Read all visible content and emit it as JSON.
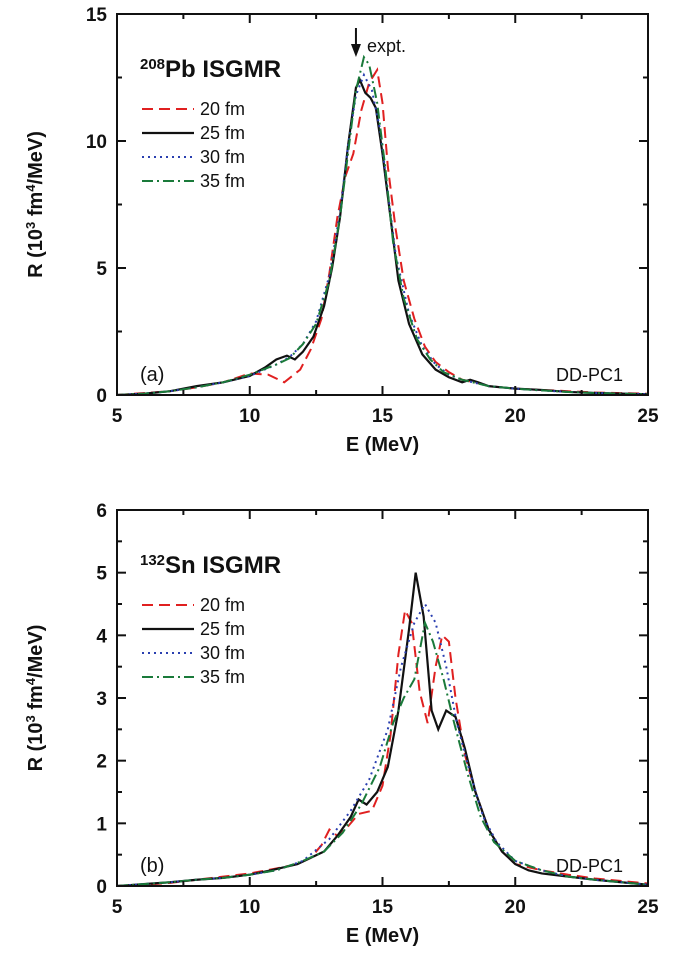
{
  "chart_data": [
    {
      "type": "line",
      "panel": "(a)",
      "title_sup": "208",
      "title": "Pb ISGMR",
      "xlabel": "E (MeV)",
      "ylabel_pre": "R (10",
      "ylabel_sup1": "3",
      "ylabel_mid": " fm",
      "ylabel_sup2": "4",
      "ylabel_post": "/MeV)",
      "xlim": [
        5,
        25
      ],
      "ylim": [
        0,
        15
      ],
      "xticks": [
        5,
        10,
        15,
        20,
        25
      ],
      "yticks": [
        0,
        5,
        10,
        15
      ],
      "model_label": "DD-PC1",
      "annotation": {
        "text": "expt.",
        "x": 14.0
      },
      "legend_position": "top-left",
      "series": [
        {
          "name": "20 fm",
          "color": "#e02020",
          "dash": "dashed",
          "points": [
            [
              5,
              0.0
            ],
            [
              7,
              0.15
            ],
            [
              8,
              0.3
            ],
            [
              9,
              0.5
            ],
            [
              10,
              0.85
            ],
            [
              10.7,
              0.8
            ],
            [
              11.3,
              0.5
            ],
            [
              11.9,
              1.0
            ],
            [
              12.3,
              1.8
            ],
            [
              12.7,
              3.0
            ],
            [
              13,
              4.8
            ],
            [
              13.3,
              7.0
            ],
            [
              13.6,
              8.6
            ],
            [
              13.9,
              9.5
            ],
            [
              14.2,
              11.2
            ],
            [
              14.5,
              12.3
            ],
            [
              14.8,
              12.8
            ],
            [
              15.0,
              11.5
            ],
            [
              15.2,
              9.0
            ],
            [
              15.5,
              6.5
            ],
            [
              15.8,
              4.5
            ],
            [
              16.2,
              3.0
            ],
            [
              16.6,
              1.9
            ],
            [
              17,
              1.3
            ],
            [
              17.5,
              0.9
            ],
            [
              18,
              0.6
            ],
            [
              18.5,
              0.5
            ],
            [
              19,
              0.35
            ],
            [
              20,
              0.25
            ],
            [
              21,
              0.2
            ],
            [
              22,
              0.15
            ],
            [
              23,
              0.1
            ],
            [
              25,
              0.05
            ]
          ]
        },
        {
          "name": "25 fm",
          "color": "#111111",
          "dash": "solid",
          "points": [
            [
              5,
              0.0
            ],
            [
              6,
              0.05
            ],
            [
              7,
              0.15
            ],
            [
              8,
              0.35
            ],
            [
              9,
              0.5
            ],
            [
              10,
              0.75
            ],
            [
              10.6,
              1.1
            ],
            [
              11.0,
              1.4
            ],
            [
              11.4,
              1.55
            ],
            [
              11.7,
              1.4
            ],
            [
              12.0,
              1.7
            ],
            [
              12.4,
              2.3
            ],
            [
              12.8,
              3.5
            ],
            [
              13.1,
              5.0
            ],
            [
              13.4,
              7.0
            ],
            [
              13.7,
              9.8
            ],
            [
              14.0,
              12.1
            ],
            [
              14.15,
              12.4
            ],
            [
              14.35,
              11.9
            ],
            [
              14.55,
              11.7
            ],
            [
              14.75,
              11.3
            ],
            [
              15.0,
              9.5
            ],
            [
              15.3,
              7.0
            ],
            [
              15.6,
              4.5
            ],
            [
              16.0,
              2.8
            ],
            [
              16.5,
              1.6
            ],
            [
              17.0,
              1.0
            ],
            [
              17.5,
              0.7
            ],
            [
              18.0,
              0.5
            ],
            [
              18.3,
              0.6
            ],
            [
              18.6,
              0.5
            ],
            [
              19,
              0.35
            ],
            [
              20,
              0.25
            ],
            [
              21,
              0.2
            ],
            [
              22,
              0.12
            ],
            [
              23,
              0.08
            ],
            [
              25,
              0.03
            ]
          ]
        },
        {
          "name": "30 fm",
          "color": "#2a3fb0",
          "dash": "dotted",
          "points": [
            [
              5,
              0.0
            ],
            [
              6,
              0.05
            ],
            [
              7,
              0.15
            ],
            [
              8,
              0.3
            ],
            [
              9,
              0.5
            ],
            [
              10,
              0.75
            ],
            [
              11,
              1.2
            ],
            [
              11.5,
              1.5
            ],
            [
              12,
              2.0
            ],
            [
              12.5,
              2.9
            ],
            [
              13,
              4.7
            ],
            [
              13.4,
              7.2
            ],
            [
              13.7,
              9.8
            ],
            [
              14.0,
              11.8
            ],
            [
              14.3,
              12.6
            ],
            [
              14.6,
              12.0
            ],
            [
              14.9,
              10.5
            ],
            [
              15.2,
              8.0
            ],
            [
              15.5,
              5.5
            ],
            [
              16,
              3.2
            ],
            [
              16.5,
              1.9
            ],
            [
              17,
              1.2
            ],
            [
              17.5,
              0.8
            ],
            [
              18,
              0.6
            ],
            [
              19,
              0.35
            ],
            [
              20,
              0.25
            ],
            [
              21,
              0.18
            ],
            [
              22,
              0.12
            ],
            [
              23,
              0.08
            ],
            [
              25,
              0.03
            ]
          ]
        },
        {
          "name": "35 fm",
          "color": "#1a7a3a",
          "dash": "dashdot",
          "points": [
            [
              5,
              0.0
            ],
            [
              6,
              0.05
            ],
            [
              7,
              0.15
            ],
            [
              8,
              0.3
            ],
            [
              9,
              0.5
            ],
            [
              10,
              0.8
            ],
            [
              11,
              1.2
            ],
            [
              11.5,
              1.45
            ],
            [
              12,
              2.0
            ],
            [
              12.5,
              2.8
            ],
            [
              13,
              4.5
            ],
            [
              13.4,
              7.0
            ],
            [
              13.7,
              9.5
            ],
            [
              14.0,
              12.0
            ],
            [
              14.3,
              13.3
            ],
            [
              14.5,
              13.0
            ],
            [
              14.8,
              11.5
            ],
            [
              15.1,
              9.0
            ],
            [
              15.4,
              6.0
            ],
            [
              15.8,
              3.8
            ],
            [
              16.3,
              2.2
            ],
            [
              16.8,
              1.4
            ],
            [
              17.3,
              0.9
            ],
            [
              18,
              0.6
            ],
            [
              19,
              0.35
            ],
            [
              20,
              0.25
            ],
            [
              21,
              0.18
            ],
            [
              22,
              0.12
            ],
            [
              23,
              0.08
            ],
            [
              25,
              0.03
            ]
          ]
        }
      ]
    },
    {
      "type": "line",
      "panel": "(b)",
      "title_sup": "132",
      "title": "Sn ISGMR",
      "xlabel": "E (MeV)",
      "ylabel_pre": "R (10",
      "ylabel_sup1": "3",
      "ylabel_mid": " fm",
      "ylabel_sup2": "4",
      "ylabel_post": "/MeV)",
      "xlim": [
        5,
        25
      ],
      "ylim": [
        0,
        6
      ],
      "xticks": [
        5,
        10,
        15,
        20,
        25
      ],
      "yticks": [
        0,
        1,
        2,
        3,
        4,
        5,
        6
      ],
      "model_label": "DD-PC1",
      "legend_position": "top-left",
      "series": [
        {
          "name": "20 fm",
          "color": "#e02020",
          "dash": "dashed",
          "points": [
            [
              5,
              0.0
            ],
            [
              6,
              0.02
            ],
            [
              7,
              0.05
            ],
            [
              8,
              0.1
            ],
            [
              9,
              0.15
            ],
            [
              10,
              0.2
            ],
            [
              11,
              0.28
            ],
            [
              11.8,
              0.35
            ],
            [
              12.3,
              0.45
            ],
            [
              12.7,
              0.65
            ],
            [
              13.0,
              0.9
            ],
            [
              13.3,
              0.8
            ],
            [
              13.7,
              0.95
            ],
            [
              14.1,
              1.15
            ],
            [
              14.6,
              1.2
            ],
            [
              15.0,
              1.6
            ],
            [
              15.3,
              2.4
            ],
            [
              15.6,
              3.7
            ],
            [
              15.85,
              4.4
            ],
            [
              16.1,
              4.2
            ],
            [
              16.4,
              3.1
            ],
            [
              16.7,
              2.6
            ],
            [
              17.0,
              3.5
            ],
            [
              17.25,
              4.0
            ],
            [
              17.5,
              3.9
            ],
            [
              17.75,
              3.0
            ],
            [
              18.1,
              2.1
            ],
            [
              18.5,
              1.5
            ],
            [
              19,
              0.9
            ],
            [
              19.5,
              0.55
            ],
            [
              20,
              0.35
            ],
            [
              21,
              0.25
            ],
            [
              22,
              0.18
            ],
            [
              23,
              0.12
            ],
            [
              24,
              0.08
            ],
            [
              25,
              0.04
            ]
          ]
        },
        {
          "name": "25 fm",
          "color": "#111111",
          "dash": "solid",
          "points": [
            [
              5,
              0.0
            ],
            [
              6,
              0.03
            ],
            [
              7,
              0.06
            ],
            [
              8,
              0.1
            ],
            [
              9,
              0.13
            ],
            [
              10,
              0.18
            ],
            [
              10.8,
              0.25
            ],
            [
              11.3,
              0.3
            ],
            [
              11.8,
              0.35
            ],
            [
              12.3,
              0.45
            ],
            [
              12.8,
              0.55
            ],
            [
              13.3,
              0.8
            ],
            [
              13.8,
              1.1
            ],
            [
              14.1,
              1.38
            ],
            [
              14.4,
              1.3
            ],
            [
              14.8,
              1.5
            ],
            [
              15.2,
              1.9
            ],
            [
              15.6,
              2.8
            ],
            [
              16.0,
              4.1
            ],
            [
              16.25,
              5.0
            ],
            [
              16.55,
              4.3
            ],
            [
              16.85,
              2.8
            ],
            [
              17.1,
              2.5
            ],
            [
              17.4,
              2.8
            ],
            [
              17.75,
              2.7
            ],
            [
              18.1,
              2.2
            ],
            [
              18.5,
              1.5
            ],
            [
              19,
              0.9
            ],
            [
              19.5,
              0.55
            ],
            [
              20,
              0.35
            ],
            [
              20.5,
              0.25
            ],
            [
              21,
              0.2
            ],
            [
              22,
              0.15
            ],
            [
              23,
              0.1
            ],
            [
              24,
              0.06
            ],
            [
              25,
              0.02
            ]
          ]
        },
        {
          "name": "30 fm",
          "color": "#2a3fb0",
          "dash": "dotted",
          "points": [
            [
              5,
              0.0
            ],
            [
              6,
              0.03
            ],
            [
              7,
              0.06
            ],
            [
              8,
              0.1
            ],
            [
              9,
              0.13
            ],
            [
              10,
              0.18
            ],
            [
              11,
              0.25
            ],
            [
              12,
              0.4
            ],
            [
              13,
              0.75
            ],
            [
              13.8,
              1.2
            ],
            [
              14.5,
              1.7
            ],
            [
              15.2,
              2.5
            ],
            [
              15.7,
              3.5
            ],
            [
              16.2,
              4.2
            ],
            [
              16.6,
              4.5
            ],
            [
              17.0,
              4.2
            ],
            [
              17.4,
              3.5
            ],
            [
              17.8,
              2.6
            ],
            [
              18.3,
              1.8
            ],
            [
              18.8,
              1.1
            ],
            [
              19.3,
              0.7
            ],
            [
              20,
              0.4
            ],
            [
              21,
              0.25
            ],
            [
              22,
              0.15
            ],
            [
              23,
              0.1
            ],
            [
              24,
              0.06
            ],
            [
              25,
              0.02
            ]
          ]
        },
        {
          "name": "35 fm",
          "color": "#1a7a3a",
          "dash": "dashdot",
          "points": [
            [
              5,
              0.0
            ],
            [
              6,
              0.03
            ],
            [
              7,
              0.06
            ],
            [
              8,
              0.1
            ],
            [
              9,
              0.13
            ],
            [
              10,
              0.18
            ],
            [
              11,
              0.25
            ],
            [
              12,
              0.4
            ],
            [
              12.8,
              0.55
            ],
            [
              13.5,
              0.85
            ],
            [
              14.2,
              1.3
            ],
            [
              14.9,
              1.9
            ],
            [
              15.4,
              2.6
            ],
            [
              15.8,
              3.0
            ],
            [
              16.2,
              3.3
            ],
            [
              16.6,
              4.2
            ],
            [
              16.9,
              3.9
            ],
            [
              17.3,
              3.3
            ],
            [
              17.7,
              2.6
            ],
            [
              18.2,
              1.8
            ],
            [
              18.7,
              1.1
            ],
            [
              19.2,
              0.7
            ],
            [
              20,
              0.4
            ],
            [
              21,
              0.25
            ],
            [
              22,
              0.15
            ],
            [
              23,
              0.1
            ],
            [
              24,
              0.06
            ],
            [
              25,
              0.02
            ]
          ]
        }
      ]
    }
  ]
}
